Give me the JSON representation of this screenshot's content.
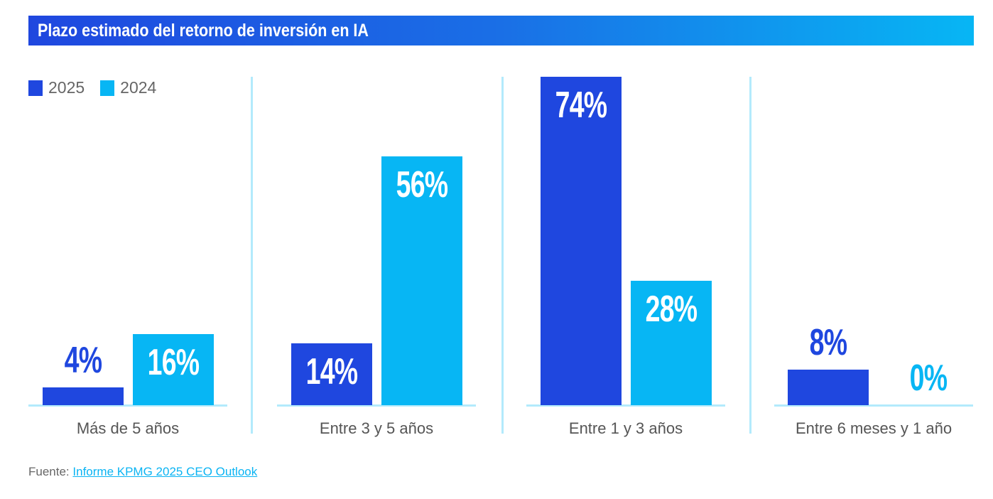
{
  "chart_data": {
    "type": "bar",
    "title": "Plazo estimado del retorno de inversión en IA",
    "categories": [
      "Más de 5 años",
      "Entre 3 y 5 años",
      "Entre 1 y 3 años",
      "Entre 6 meses y 1 año"
    ],
    "series": [
      {
        "name": "2025",
        "values": [
          4,
          14,
          74,
          8
        ],
        "labels": [
          "4%",
          "14%",
          "74%",
          "8%"
        ],
        "color": "#1f47df"
      },
      {
        "name": "2024",
        "values": [
          16,
          56,
          28,
          0
        ],
        "labels": [
          "16%",
          "56%",
          "28%",
          "0%"
        ],
        "color": "#07b6f4"
      }
    ],
    "ylim": [
      0,
      74
    ],
    "grid": false,
    "legend": "top-left",
    "xlabel": "",
    "ylabel": ""
  },
  "source": {
    "label": "Fuente:",
    "link_text": "Informe KPMG 2025 CEO Outlook"
  }
}
